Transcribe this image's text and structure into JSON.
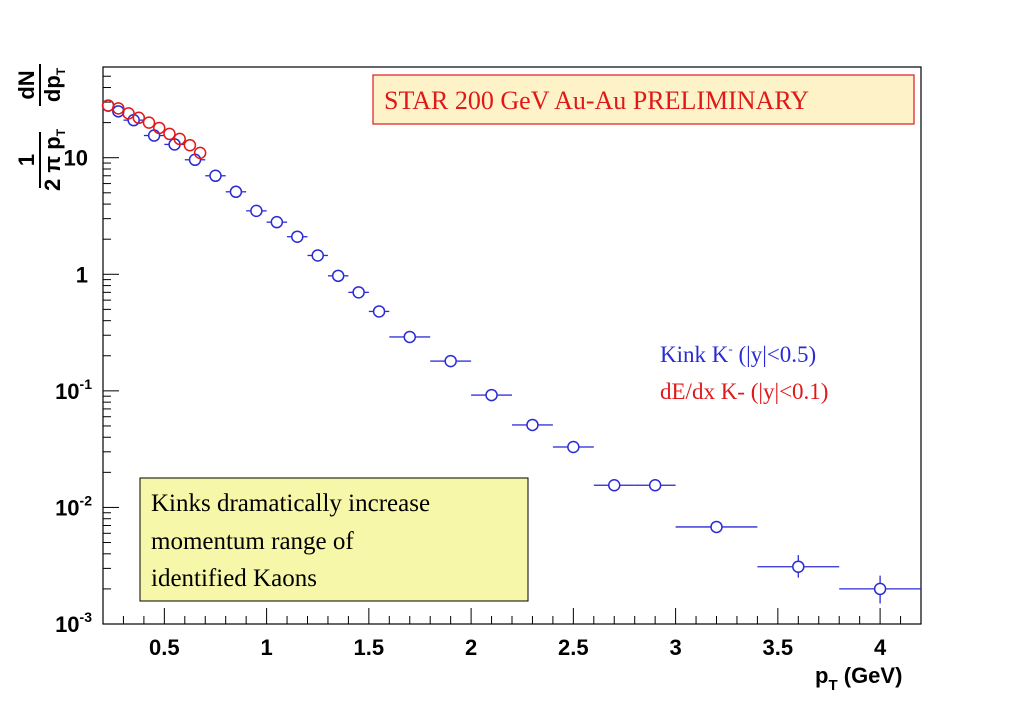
{
  "chart_data": {
    "type": "scatter",
    "title": "STAR 200 GeV Au-Au PRELIMINARY",
    "xlabel": {
      "main": "p",
      "sub": "T",
      "rest": " (GeV)"
    },
    "ylabel": {
      "num": "1",
      "den_a": "2 π p",
      "den_sub": "T",
      "num2": "dN",
      "den2_a": "dp",
      "den2_sub": "T"
    },
    "x_scale": "linear",
    "y_scale": "log",
    "xlim": [
      0.2,
      4.2
    ],
    "ylim": [
      0.001,
      60
    ],
    "x_ticks": [
      {
        "value": 0.5,
        "label": "0.5"
      },
      {
        "value": 1.0,
        "label": "1"
      },
      {
        "value": 1.5,
        "label": "1.5"
      },
      {
        "value": 2.0,
        "label": "2"
      },
      {
        "value": 2.5,
        "label": "2.5"
      },
      {
        "value": 3.0,
        "label": "3"
      },
      {
        "value": 3.5,
        "label": "3.5"
      },
      {
        "value": 4.0,
        "label": "4"
      }
    ],
    "y_ticks": [
      {
        "value": 10,
        "base": "10",
        "exp": ""
      },
      {
        "value": 1,
        "base": "1",
        "exp": ""
      },
      {
        "value": 0.1,
        "base": "10",
        "exp": "-1"
      },
      {
        "value": 0.01,
        "base": "10",
        "exp": "-2"
      },
      {
        "value": 0.001,
        "base": "10",
        "exp": "-3"
      }
    ],
    "grid": false,
    "legend_placement": "right-middle",
    "series": [
      {
        "name_parts": {
          "a": "Kink K",
          "sup": "-",
          "b": " (|y|<0.5)"
        },
        "color": "#2b2bd6",
        "points": [
          {
            "x": 0.225,
            "y": 28,
            "xerr": 0.025
          },
          {
            "x": 0.275,
            "y": 25,
            "xerr": 0.025
          },
          {
            "x": 0.35,
            "y": 21,
            "xerr": 0.05
          },
          {
            "x": 0.45,
            "y": 15.5,
            "xerr": 0.05
          },
          {
            "x": 0.55,
            "y": 13,
            "xerr": 0.05
          },
          {
            "x": 0.65,
            "y": 9.6,
            "xerr": 0.05
          },
          {
            "x": 0.75,
            "y": 7.0,
            "xerr": 0.05
          },
          {
            "x": 0.85,
            "y": 5.1,
            "xerr": 0.05
          },
          {
            "x": 0.95,
            "y": 3.5,
            "xerr": 0.05
          },
          {
            "x": 1.05,
            "y": 2.8,
            "xerr": 0.05
          },
          {
            "x": 1.15,
            "y": 2.1,
            "xerr": 0.05
          },
          {
            "x": 1.25,
            "y": 1.45,
            "xerr": 0.05
          },
          {
            "x": 1.35,
            "y": 0.97,
            "xerr": 0.05
          },
          {
            "x": 1.45,
            "y": 0.7,
            "xerr": 0.05
          },
          {
            "x": 1.55,
            "y": 0.48,
            "xerr": 0.05
          },
          {
            "x": 1.7,
            "y": 0.29,
            "xerr": 0.1
          },
          {
            "x": 1.9,
            "y": 0.18,
            "xerr": 0.1
          },
          {
            "x": 2.1,
            "y": 0.092,
            "xerr": 0.1
          },
          {
            "x": 2.3,
            "y": 0.051,
            "xerr": 0.1
          },
          {
            "x": 2.5,
            "y": 0.033,
            "xerr": 0.1
          },
          {
            "x": 2.7,
            "y": 0.0155,
            "xerr": 0.1
          },
          {
            "x": 2.9,
            "y": 0.0155,
            "xerr": 0.1
          },
          {
            "x": 3.2,
            "y": 0.0068,
            "xerr": 0.2
          },
          {
            "x": 3.6,
            "y": 0.0031,
            "xerr": 0.2,
            "yerr": [
              0.0025,
              0.0039
            ]
          },
          {
            "x": 4.0,
            "y": 0.002,
            "xerr": 0.2,
            "yerr": [
              0.0015,
              0.0026
            ]
          }
        ]
      },
      {
        "name": "dE/dx K- (|y|<0.1)",
        "color": "#e01818",
        "points": [
          {
            "x": 0.225,
            "y": 28
          },
          {
            "x": 0.275,
            "y": 26.5
          },
          {
            "x": 0.325,
            "y": 24
          },
          {
            "x": 0.375,
            "y": 22
          },
          {
            "x": 0.425,
            "y": 20
          },
          {
            "x": 0.475,
            "y": 18
          },
          {
            "x": 0.525,
            "y": 16
          },
          {
            "x": 0.575,
            "y": 14.5
          },
          {
            "x": 0.625,
            "y": 12.8
          },
          {
            "x": 0.675,
            "y": 11
          }
        ]
      }
    ],
    "annotation": {
      "lines": [
        "Kinks dramatically increase",
        "momentum range of",
        "identified Kaons"
      ],
      "fill": "#f6f7a8"
    }
  }
}
